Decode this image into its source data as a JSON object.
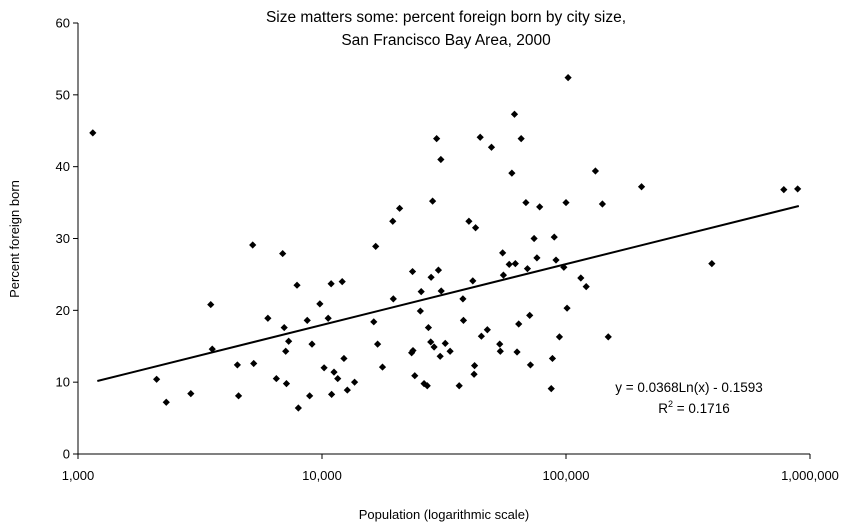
{
  "chart_data": {
    "type": "scatter",
    "title_lines": [
      "Size matters some: percent foreign born by city size,",
      "San Francisco Bay Area, 2000"
    ],
    "xlabel": "Population (logarithmic scale)",
    "ylabel": "Percent foreign born",
    "x_scale": "log",
    "xlim": [
      1000,
      1000000
    ],
    "ylim": [
      0,
      60
    ],
    "x_ticks": [
      1000,
      10000,
      100000,
      1000000
    ],
    "x_tick_labels": [
      "1,000",
      "10,000",
      "100,000",
      "1,000,000"
    ],
    "y_ticks": [
      0,
      10,
      20,
      30,
      40,
      50,
      60
    ],
    "y_tick_labels": [
      "0",
      "10",
      "20",
      "30",
      "40",
      "50",
      "60"
    ],
    "grid": false,
    "marker": "diamond",
    "marker_color": "#000000",
    "trendline": {
      "type": "logarithmic",
      "a": 0.0368,
      "b": -0.1593,
      "x_range": [
        1200,
        900000
      ],
      "equation_label": "y = 0.0368Ln(x) - 0.1593",
      "r2_prefix": "R",
      "r2_exponent": "2",
      "r2_value": " = 0.1716"
    },
    "points": [
      [
        1150,
        44.7
      ],
      [
        2100,
        10.4
      ],
      [
        2300,
        7.2
      ],
      [
        2900,
        8.4
      ],
      [
        3500,
        20.8
      ],
      [
        3550,
        14.6
      ],
      [
        4500,
        12.4
      ],
      [
        4550,
        8.1
      ],
      [
        5200,
        29.1
      ],
      [
        5250,
        12.6
      ],
      [
        6000,
        18.9
      ],
      [
        6500,
        10.5
      ],
      [
        6900,
        27.9
      ],
      [
        7000,
        17.6
      ],
      [
        7100,
        14.3
      ],
      [
        7150,
        9.8
      ],
      [
        7300,
        15.7
      ],
      [
        7900,
        23.5
      ],
      [
        8000,
        6.4
      ],
      [
        8700,
        18.6
      ],
      [
        8900,
        8.1
      ],
      [
        9100,
        15.3
      ],
      [
        9800,
        20.9
      ],
      [
        10200,
        12.0
      ],
      [
        10600,
        18.9
      ],
      [
        10900,
        23.7
      ],
      [
        10950,
        8.3
      ],
      [
        11200,
        11.4
      ],
      [
        11600,
        10.5
      ],
      [
        12100,
        24.0
      ],
      [
        12300,
        13.3
      ],
      [
        12700,
        8.9
      ],
      [
        13600,
        10.0
      ],
      [
        16300,
        18.4
      ],
      [
        16600,
        28.9
      ],
      [
        16900,
        15.3
      ],
      [
        17700,
        12.1
      ],
      [
        19500,
        32.4
      ],
      [
        19600,
        21.6
      ],
      [
        20800,
        34.2
      ],
      [
        23300,
        14.1
      ],
      [
        23500,
        25.4
      ],
      [
        23600,
        14.4
      ],
      [
        24000,
        10.9
      ],
      [
        25300,
        19.9
      ],
      [
        25500,
        22.6
      ],
      [
        26200,
        9.8
      ],
      [
        27000,
        9.5
      ],
      [
        27300,
        17.6
      ],
      [
        27900,
        15.6
      ],
      [
        28000,
        24.6
      ],
      [
        28400,
        35.2
      ],
      [
        28800,
        14.9
      ],
      [
        29500,
        43.9
      ],
      [
        30000,
        25.6
      ],
      [
        30500,
        13.6
      ],
      [
        30700,
        41.0
      ],
      [
        30800,
        22.7
      ],
      [
        32000,
        15.4
      ],
      [
        33500,
        14.3
      ],
      [
        36500,
        9.5
      ],
      [
        37800,
        21.6
      ],
      [
        38000,
        18.6
      ],
      [
        40000,
        32.4
      ],
      [
        41500,
        24.1
      ],
      [
        42000,
        11.1
      ],
      [
        42200,
        12.3
      ],
      [
        42600,
        31.5
      ],
      [
        44500,
        44.1
      ],
      [
        45000,
        16.4
      ],
      [
        47600,
        17.3
      ],
      [
        49500,
        42.7
      ],
      [
        53500,
        15.3
      ],
      [
        53800,
        14.3
      ],
      [
        55000,
        28.0
      ],
      [
        55400,
        24.9
      ],
      [
        58500,
        26.4
      ],
      [
        60000,
        39.1
      ],
      [
        61500,
        47.3
      ],
      [
        62000,
        26.5
      ],
      [
        63000,
        14.2
      ],
      [
        64000,
        18.1
      ],
      [
        65500,
        43.9
      ],
      [
        68500,
        35.0
      ],
      [
        69500,
        25.8
      ],
      [
        71000,
        19.3
      ],
      [
        71500,
        12.4
      ],
      [
        74000,
        30.0
      ],
      [
        76000,
        27.3
      ],
      [
        78000,
        34.4
      ],
      [
        87000,
        9.1
      ],
      [
        88000,
        13.3
      ],
      [
        89500,
        30.2
      ],
      [
        91000,
        27.0
      ],
      [
        94000,
        16.3
      ],
      [
        98000,
        26.0
      ],
      [
        100000,
        35.0
      ],
      [
        101000,
        20.3
      ],
      [
        102000,
        52.4
      ],
      [
        115000,
        24.5
      ],
      [
        121000,
        23.3
      ],
      [
        132000,
        39.4
      ],
      [
        141000,
        34.8
      ],
      [
        149000,
        16.3
      ],
      [
        204000,
        37.2
      ],
      [
        396000,
        26.5
      ],
      [
        781000,
        36.8
      ],
      [
        890000,
        36.9
      ]
    ]
  }
}
